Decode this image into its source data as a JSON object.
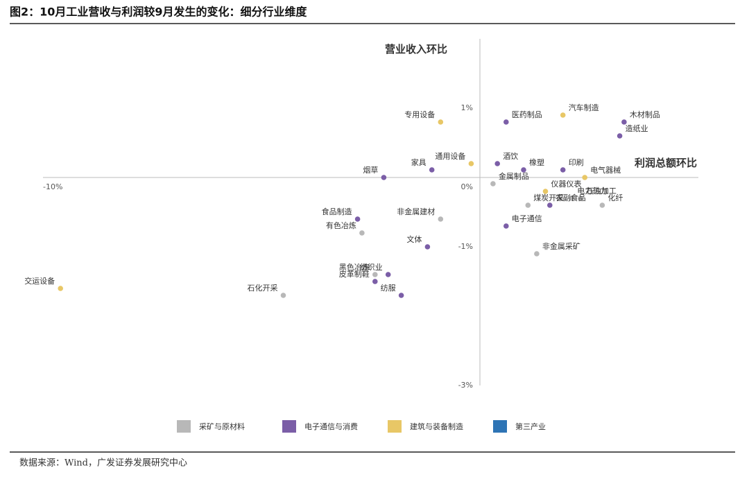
{
  "chart_data": {
    "type": "scatter",
    "title": "图2：10月工业营收与利润较9月发生的变化：细分行业维度",
    "x_label": "利润总额环比",
    "y_label": "营业收入环比",
    "source": "数据来源：Wind，广发证券发展研究中心",
    "xlim": [
      -10,
      5
    ],
    "ylim": [
      -3,
      2
    ],
    "xticks": [
      {
        "value": -10,
        "label": "-10%"
      }
    ],
    "yticks": [
      {
        "value": 1,
        "label": "1%"
      },
      {
        "value": 0,
        "label": "0%"
      },
      {
        "value": -1,
        "label": "-1%"
      },
      {
        "value": -3,
        "label": "-3%"
      }
    ],
    "series": [
      {
        "name": "采矿与原材料",
        "color": "#b8b8b8",
        "labels": [
          "金属制品",
          "石油加工",
          "电力热力",
          "煤炭开采",
          "化纤",
          "非金属采矿",
          "非金属建材",
          "有色冶炼",
          "黑色冶炼",
          "石化开采"
        ],
        "x": [
          0.3,
          2.3,
          2.1,
          1.1,
          2.8,
          1.3,
          -0.9,
          -2.7,
          -2.4,
          -4.5
        ],
        "values": [
          -0.09,
          -0.3,
          -0.3,
          -0.4,
          -0.4,
          -1.1,
          -0.6,
          -0.8,
          -1.4,
          -1.7
        ]
      },
      {
        "name": "电子通信与消费",
        "color": "#7b5ea7",
        "labels": [
          "木材制品",
          "医药制品",
          "造纸业",
          "酒饮",
          "橡塑",
          "印刷",
          "家具",
          "烟草",
          "农副食品",
          "电子通信",
          "食品制造",
          "文体",
          "纺织业",
          "皮革制鞋",
          "纺服"
        ],
        "x": [
          3.3,
          0.6,
          3.2,
          0.4,
          1.0,
          1.9,
          -1.1,
          -2.2,
          1.6,
          0.6,
          -2.8,
          -1.2,
          -2.1,
          -2.4,
          -1.8
        ],
        "values": [
          0.8,
          0.8,
          0.6,
          0.2,
          0.11,
          0.11,
          0.11,
          0,
          -0.4,
          -0.7,
          -0.6,
          -1.0,
          -1.4,
          -1.5,
          -1.7
        ]
      },
      {
        "name": "建筑与装备制造",
        "color": "#e8c766",
        "labels": [
          "专用设备",
          "汽车制造",
          "通用设备",
          "电气器械",
          "仪器仪表",
          "交运设备"
        ],
        "x": [
          -0.9,
          1.9,
          -0.2,
          2.4,
          1.5,
          -9.6
        ],
        "values": [
          0.8,
          0.9,
          0.2,
          0,
          -0.2,
          -1.6
        ]
      },
      {
        "name": "第三产业",
        "color": "#2e74b5",
        "labels": [],
        "x": [],
        "values": []
      }
    ]
  }
}
